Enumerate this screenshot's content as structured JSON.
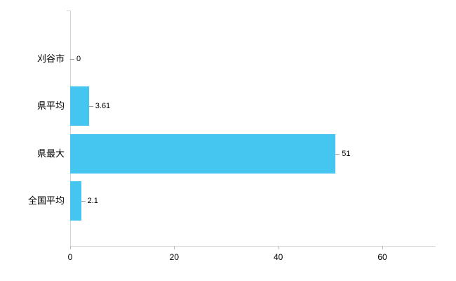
{
  "chart_data": {
    "type": "bar",
    "orientation": "horizontal",
    "title": "",
    "xlabel": "",
    "ylabel": "",
    "categories": [
      "刈谷市",
      "県平均",
      "県最大",
      "全国平均"
    ],
    "values": [
      0,
      3.61,
      51,
      2.1
    ],
    "value_labels": [
      "0",
      "3.61",
      "51",
      "2.1"
    ],
    "x_ticks": [
      0,
      20,
      40,
      60
    ],
    "xlim": [
      0,
      60
    ],
    "grid": false,
    "legend": false,
    "bar_color": "#45c6f0",
    "axis_color": "#d3d3d3",
    "tick_color": "#b9b9b9",
    "text_color": "#000000"
  }
}
